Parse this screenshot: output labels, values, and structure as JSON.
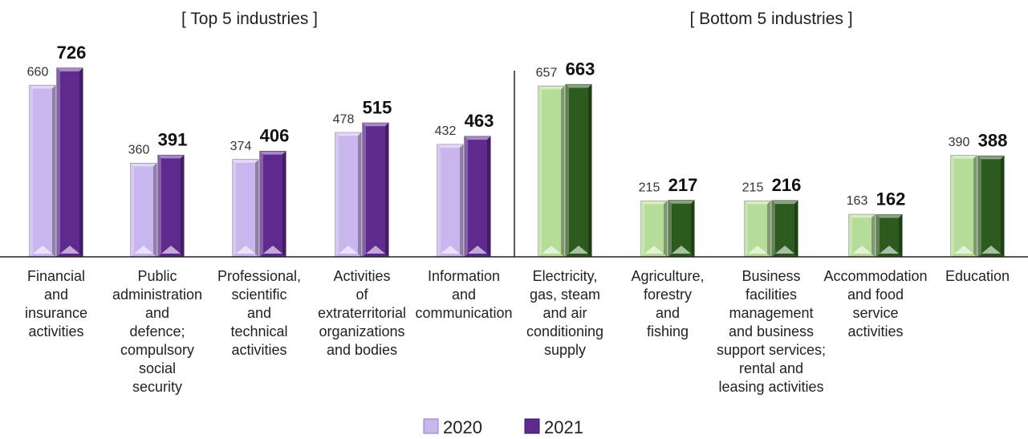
{
  "chart_data": {
    "type": "bar",
    "groups": [
      {
        "title": "[ Top 5 industries ]",
        "theme": "purple",
        "colors": {
          "2020": "#c9b6ee",
          "2021": "#5f2a8e"
        },
        "categories": [
          [
            "Financial",
            "and",
            "insurance",
            "activities"
          ],
          [
            "Public",
            "administration",
            "and",
            "defence;",
            "compulsory",
            "social",
            "security"
          ],
          [
            "Professional,",
            "scientific",
            "and",
            "technical",
            "activities"
          ],
          [
            "Activities",
            "of",
            "extraterritorial",
            "organizations",
            "and bodies"
          ],
          [
            "Information",
            "and",
            "communication"
          ]
        ],
        "series": [
          {
            "name": "2020",
            "values": [
              660,
              360,
              374,
              478,
              432
            ]
          },
          {
            "name": "2021",
            "values": [
              726,
              391,
              406,
              515,
              463
            ]
          }
        ]
      },
      {
        "title": "[ Bottom 5 industries ]",
        "theme": "green",
        "colors": {
          "2020": "#b6dc9a",
          "2021": "#2d5a1e"
        },
        "categories": [
          [
            "Electricity,",
            "gas, steam",
            "and air",
            "conditioning",
            "supply"
          ],
          [
            "Agriculture,",
            "forestry",
            "and",
            "fishing"
          ],
          [
            "Business",
            "facilities",
            "management",
            "and business",
            "support services;",
            "rental and",
            "leasing activities"
          ],
          [
            "Accommodation",
            "and food",
            "service",
            "activities"
          ],
          [
            "Education"
          ]
        ],
        "series": [
          {
            "name": "2020",
            "values": [
              657,
              215,
              215,
              163,
              390
            ]
          },
          {
            "name": "2021",
            "values": [
              663,
              217,
              216,
              162,
              388
            ]
          }
        ]
      }
    ],
    "legend": {
      "placement": "bottom-center",
      "items": [
        {
          "label": "2020",
          "color": "#c9b6ee"
        },
        {
          "label": "2021",
          "color": "#5f2a8e"
        }
      ]
    },
    "ylim": [
      0,
      800
    ],
    "grid": false
  }
}
